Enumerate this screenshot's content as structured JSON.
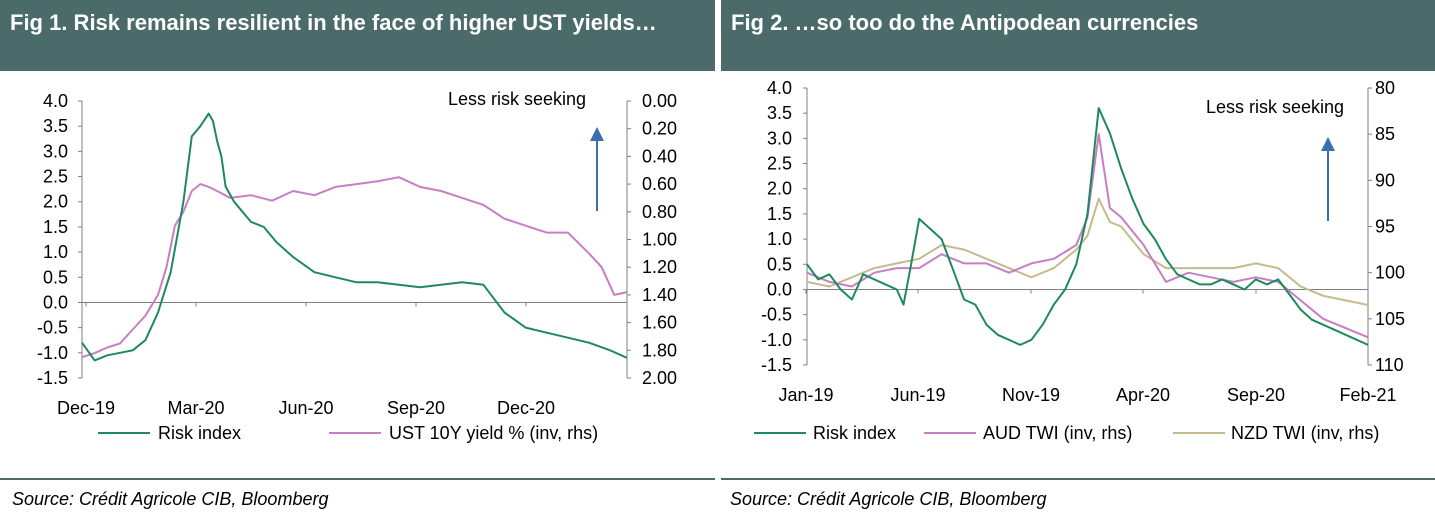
{
  "figures": [
    {
      "title": "Fig 1. Risk remains resilient in the face of higher UST yields…",
      "source": "Source: Crédit Agricole CIB, Bloomberg"
    },
    {
      "title": "Fig 2. …so too do the Antipodean currencies",
      "source": "Source: Crédit Agricole CIB, Bloomberg"
    }
  ],
  "colors": {
    "header_bg": "#4a6b6a",
    "risk": "#1e8a5c",
    "ust": "#c77ec4",
    "aud": "#c77ec4",
    "nzd": "#c3bb8e",
    "arrow": "#3c6fb0",
    "axis": "#808080"
  },
  "chart_data": [
    {
      "type": "line",
      "title": "Fig 1. Risk remains resilient in the face of higher UST yields…",
      "annotation": "Less risk seeking",
      "x_ticks": [
        "Dec-19",
        "Mar-20",
        "Jun-20",
        "Sep-20",
        "Dec-20"
      ],
      "y_left": {
        "min": -1.5,
        "max": 4.0,
        "ticks": [
          "4.0",
          "3.5",
          "3.0",
          "2.5",
          "2.0",
          "1.5",
          "1.0",
          "0.5",
          "0.0",
          "-0.5",
          "-1.0",
          "-1.5"
        ]
      },
      "y_right": {
        "min": 0.0,
        "max": 2.0,
        "inverted": true,
        "ticks": [
          "0.00",
          "0.20",
          "0.40",
          "0.60",
          "0.80",
          "1.00",
          "1.20",
          "1.40",
          "1.60",
          "1.80",
          "2.00"
        ]
      },
      "series": [
        {
          "name": "Risk index",
          "axis": "left",
          "x": [
            0,
            0.3,
            0.6,
            0.9,
            1.2,
            1.5,
            1.8,
            2.1,
            2.4,
            2.6,
            2.8,
            3.0,
            3.1,
            3.2,
            3.3,
            3.4,
            3.6,
            3.8,
            4.0,
            4.3,
            4.6,
            5.0,
            5.5,
            6.0,
            6.5,
            7.0,
            7.5,
            8.0,
            8.5,
            9.0,
            9.5,
            10.0,
            10.5,
            11.0,
            11.5,
            12.0,
            12.5,
            12.9
          ],
          "values": [
            -0.8,
            -1.15,
            -1.05,
            -1.0,
            -0.95,
            -0.75,
            -0.2,
            0.6,
            2.0,
            3.3,
            3.5,
            3.75,
            3.6,
            3.2,
            2.9,
            2.3,
            2.0,
            1.8,
            1.6,
            1.5,
            1.2,
            0.9,
            0.6,
            0.5,
            0.4,
            0.4,
            0.35,
            0.3,
            0.35,
            0.4,
            0.35,
            -0.2,
            -0.5,
            -0.6,
            -0.7,
            -0.8,
            -0.95,
            -1.1
          ]
        },
        {
          "name": "UST 10Y yield % (inv, rhs)",
          "axis": "right",
          "x": [
            0,
            0.3,
            0.6,
            0.9,
            1.2,
            1.5,
            1.8,
            2.0,
            2.2,
            2.4,
            2.6,
            2.8,
            3.0,
            3.2,
            3.5,
            4.0,
            4.5,
            5.0,
            5.5,
            6.0,
            6.5,
            7.0,
            7.5,
            8.0,
            8.5,
            9.0,
            9.5,
            10.0,
            10.5,
            11.0,
            11.5,
            12.0,
            12.3,
            12.6,
            12.9
          ],
          "values": [
            1.85,
            1.82,
            1.78,
            1.75,
            1.65,
            1.55,
            1.4,
            1.2,
            0.9,
            0.8,
            0.65,
            0.6,
            0.62,
            0.65,
            0.7,
            0.68,
            0.72,
            0.65,
            0.68,
            0.62,
            0.6,
            0.58,
            0.55,
            0.62,
            0.65,
            0.7,
            0.75,
            0.85,
            0.9,
            0.95,
            0.95,
            1.1,
            1.2,
            1.4,
            1.38
          ]
        }
      ]
    },
    {
      "type": "line",
      "title": "Fig 2. …so too do the Antipodean currencies",
      "annotation": "Less risk seeking",
      "x_ticks": [
        "Jan-19",
        "Jun-19",
        "Nov-19",
        "Apr-20",
        "Sep-20",
        "Feb-21"
      ],
      "y_left": {
        "min": -1.5,
        "max": 4.0,
        "ticks": [
          "4.0",
          "3.5",
          "3.0",
          "2.5",
          "2.0",
          "1.5",
          "1.0",
          "0.5",
          "0.0",
          "-0.5",
          "-1.0",
          "-1.5"
        ]
      },
      "y_right": {
        "min": 80,
        "max": 110,
        "inverted": true,
        "ticks": [
          "80",
          "85",
          "90",
          "95",
          "100",
          "105",
          "110"
        ]
      },
      "series": [
        {
          "name": "Risk index",
          "axis": "left",
          "x": [
            0,
            0.5,
            1.0,
            1.5,
            2.0,
            2.5,
            3.0,
            3.5,
            4.0,
            4.3,
            4.6,
            5.0,
            5.5,
            6.0,
            6.5,
            7.0,
            7.5,
            8.0,
            8.5,
            9.0,
            9.5,
            10.0,
            10.5,
            11.0,
            11.5,
            12.0,
            12.5,
            13.0,
            13.5,
            14.0,
            14.5,
            15.0,
            15.5,
            16.0,
            16.5,
            17.0,
            17.5,
            18.0,
            18.5,
            19.0,
            19.5,
            20.0,
            20.5,
            21.0,
            21.5,
            22.0,
            22.5,
            23.0,
            23.5,
            24.0,
            24.5,
            25.0
          ],
          "values": [
            0.5,
            0.2,
            0.3,
            0.0,
            -0.2,
            0.3,
            0.2,
            0.1,
            0.0,
            -0.3,
            0.4,
            1.4,
            1.2,
            1.0,
            0.4,
            -0.2,
            -0.3,
            -0.7,
            -0.9,
            -1.0,
            -1.1,
            -1.0,
            -0.7,
            -0.3,
            0.0,
            0.5,
            1.5,
            3.6,
            3.1,
            2.4,
            1.8,
            1.3,
            1.0,
            0.6,
            0.3,
            0.2,
            0.1,
            0.1,
            0.2,
            0.1,
            0.0,
            0.2,
            0.1,
            0.2,
            -0.1,
            -0.4,
            -0.6,
            -0.7,
            -0.8,
            -0.9,
            -1.0,
            -1.1
          ]
        },
        {
          "name": "AUD TWI (inv, rhs)",
          "axis": "right",
          "x": [
            0,
            1,
            2,
            3,
            4,
            5,
            6,
            7,
            8,
            9,
            10,
            11,
            12,
            12.5,
            13,
            13.5,
            14,
            15,
            16,
            17,
            18,
            19,
            20,
            21,
            22,
            23,
            24,
            25
          ],
          "values": [
            100,
            101,
            101.5,
            100,
            99.5,
            99.5,
            98,
            99,
            99,
            100,
            99,
            98.5,
            97,
            94,
            85,
            93,
            94,
            97,
            101,
            100,
            100.5,
            101,
            100.5,
            101,
            103,
            105,
            106,
            107
          ]
        },
        {
          "name": "NZD TWI (inv, rhs)",
          "axis": "right",
          "x": [
            0,
            1,
            2,
            3,
            4,
            5,
            6,
            7,
            8,
            9,
            10,
            11,
            12,
            12.5,
            13,
            13.5,
            14,
            15,
            16,
            17,
            18,
            19,
            20,
            21,
            22,
            23,
            24,
            25
          ],
          "values": [
            101,
            101.5,
            100.5,
            99.5,
            99,
            98.5,
            97,
            97.5,
            98.5,
            99.5,
            100.5,
            99.5,
            97.5,
            96,
            92,
            94.5,
            95,
            98,
            99.5,
            99.5,
            99.5,
            99.5,
            99,
            99.5,
            101.5,
            102.5,
            103,
            103.5
          ]
        }
      ]
    }
  ]
}
